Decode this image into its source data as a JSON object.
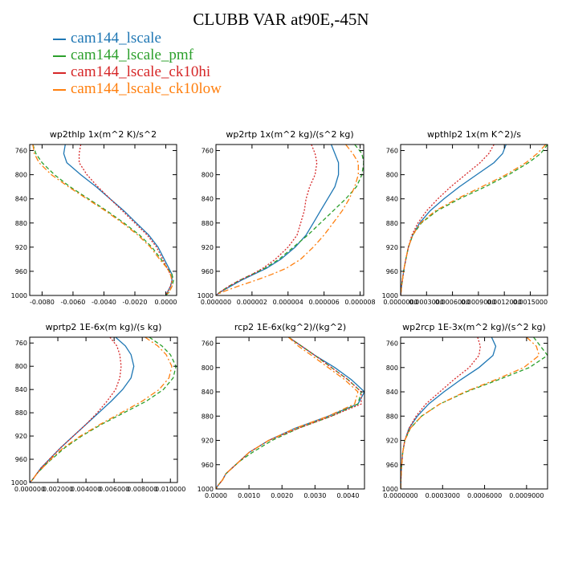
{
  "title": "CLUBB VAR at90E,-45N",
  "legend": [
    {
      "label": "cam144_lscale",
      "color": "#1f77b4"
    },
    {
      "label": "cam144_lscale_pmf",
      "color": "#2ca02c"
    },
    {
      "label": "cam144_lscale_ck10hi",
      "color": "#d62728"
    },
    {
      "label": "cam144_lscale_ck10low",
      "color": "#ff7f0e"
    }
  ],
  "chart_data": [
    {
      "type": "line",
      "title": "wp2thlp   1x(m^2 K)/s^2",
      "ylim": [
        1000,
        750
      ],
      "yticks": [
        760,
        800,
        840,
        880,
        920,
        960,
        1000
      ],
      "ytick_labels": [
        "760",
        "800",
        "840",
        "880",
        "920",
        "960",
        "1000"
      ],
      "xlim": [
        -0.0088,
        0.0007
      ],
      "xticks": [
        -0.008,
        -0.006,
        -0.004,
        -0.002,
        0.0
      ],
      "xtick_labels": [
        "-0.0080",
        "-0.0060",
        "-0.0040",
        "-0.0020",
        "0.0000"
      ],
      "y": [
        750,
        765,
        780,
        800,
        820,
        840,
        860,
        880,
        900,
        920,
        940,
        955,
        965,
        975,
        985,
        995,
        1000
      ],
      "series": [
        {
          "name": "cam144_lscale",
          "values": [
            -0.0065,
            -0.0066,
            -0.0064,
            -0.0055,
            -0.0045,
            -0.0036,
            -0.0027,
            -0.0019,
            -0.0011,
            -0.0005,
            -0.0001,
            0.0002,
            0.0004,
            0.0004,
            0.0003,
            0.0001,
            0.0
          ]
        },
        {
          "name": "cam144_lscale_pmf",
          "values": [
            -0.0086,
            -0.0084,
            -0.008,
            -0.0072,
            -0.0062,
            -0.005,
            -0.0038,
            -0.0027,
            -0.0017,
            -0.0009,
            -0.0003,
            0.0001,
            0.0004,
            0.0005,
            0.0004,
            0.0002,
            0.0
          ]
        },
        {
          "name": "cam144_lscale_ck10hi",
          "values": [
            -0.0055,
            -0.0056,
            -0.0056,
            -0.0051,
            -0.0044,
            -0.0036,
            -0.0028,
            -0.002,
            -0.0012,
            -0.0006,
            -0.0002,
            0.0001,
            0.0003,
            0.0004,
            0.0003,
            0.0001,
            0.0
          ]
        },
        {
          "name": "cam144_lscale_ck10low",
          "values": [
            -0.0086,
            -0.0085,
            -0.0082,
            -0.0074,
            -0.0063,
            -0.0051,
            -0.0039,
            -0.0028,
            -0.0018,
            -0.001,
            -0.0004,
            0.0001,
            0.0003,
            0.0004,
            0.0004,
            0.0002,
            0.0
          ]
        }
      ]
    },
    {
      "type": "line",
      "title": "wp2rtp   1x(m^2 kg)/(s^2 kg)",
      "ylim": [
        1000,
        750
      ],
      "yticks": [
        760,
        800,
        840,
        880,
        920,
        960,
        1000
      ],
      "ytick_labels": [
        "760",
        "800",
        "840",
        "880",
        "920",
        "960",
        "1000"
      ],
      "xlim": [
        0.0,
        8.2e-06
      ],
      "xticks": [
        0.0,
        2e-06,
        4e-06,
        6e-06,
        8e-06
      ],
      "xtick_labels": [
        "0.000000",
        "0.000002",
        "0.000004",
        "0.000006",
        "0.000008"
      ],
      "y": [
        750,
        765,
        780,
        800,
        820,
        840,
        860,
        880,
        900,
        920,
        940,
        955,
        965,
        975,
        985,
        995,
        1000
      ],
      "series": [
        {
          "name": "cam144_lscale",
          "values": [
            6.4e-06,
            6.6e-06,
            6.8e-06,
            6.8e-06,
            6.6e-06,
            6.2e-06,
            5.8e-06,
            5.4e-06,
            5e-06,
            4.4e-06,
            3.6e-06,
            2.8e-06,
            2.1e-06,
            1.4e-06,
            8e-07,
            2e-07,
            0.0
          ]
        },
        {
          "name": "cam144_lscale_pmf",
          "values": [
            7.7e-06,
            8.1e-06,
            8.2e-06,
            8.1e-06,
            7.8e-06,
            7.2e-06,
            6.5e-06,
            5.8e-06,
            5.1e-06,
            4.3e-06,
            3.5e-06,
            2.7e-06,
            2e-06,
            1.3e-06,
            7e-07,
            2e-07,
            0.0
          ]
        },
        {
          "name": "cam144_lscale_ck10hi",
          "values": [
            5.3e-06,
            5.5e-06,
            5.6e-06,
            5.5e-06,
            5.2e-06,
            5e-06,
            4.9e-06,
            4.7e-06,
            4.5e-06,
            4e-06,
            3.3e-06,
            2.6e-06,
            2e-06,
            1.3e-06,
            7e-07,
            2e-07,
            0.0
          ]
        },
        {
          "name": "cam144_lscale_ck10low",
          "values": [
            7.2e-06,
            7.6e-06,
            7.9e-06,
            7.9e-06,
            7.7e-06,
            7.4e-06,
            7e-06,
            6.5e-06,
            6e-06,
            5.4e-06,
            4.7e-06,
            3.9e-06,
            3.1e-06,
            2.2e-06,
            1.2e-06,
            3e-07,
            0.0
          ]
        }
      ]
    },
    {
      "type": "line",
      "title": "wpthlp2   1x(m K^2)/s",
      "ylim": [
        1000,
        750
      ],
      "yticks": [
        760,
        800,
        840,
        880,
        920,
        960,
        1000
      ],
      "ytick_labels": [
        "760",
        "800",
        "840",
        "880",
        "920",
        "960",
        "1000"
      ],
      "xlim": [
        0.0,
        0.0017
      ],
      "xticks": [
        0.0,
        0.0003,
        0.0006,
        0.0009,
        0.0012,
        0.0015
      ],
      "xtick_labels": [
        "0.0000000",
        "0.0003000",
        "0.0006000",
        "0.0009000",
        "0.0012000",
        "0.0015000"
      ],
      "y": [
        750,
        765,
        780,
        800,
        820,
        840,
        860,
        880,
        900,
        920,
        940,
        955,
        965,
        975,
        985,
        995,
        1000
      ],
      "series": [
        {
          "name": "cam144_lscale",
          "values": [
            0.00122,
            0.00118,
            0.00108,
            0.00088,
            0.00068,
            0.0005,
            0.00034,
            0.00022,
            0.00014,
            9e-05,
            6e-05,
            4e-05,
            3e-05,
            2e-05,
            1e-05,
            5e-06,
            0.0
          ]
        },
        {
          "name": "cam144_lscale_pmf",
          "values": [
            0.0017,
            0.00162,
            0.00148,
            0.00125,
            0.00098,
            0.00068,
            0.00042,
            0.00024,
            0.00014,
            9e-05,
            6e-05,
            4e-05,
            3e-05,
            2e-05,
            1e-05,
            5e-06,
            0.0
          ]
        },
        {
          "name": "cam144_lscale_ck10hi",
          "values": [
            0.00108,
            0.00102,
            0.00092,
            0.00075,
            0.00058,
            0.00043,
            0.0003,
            0.0002,
            0.00013,
            9e-05,
            6e-05,
            4e-05,
            3e-05,
            2e-05,
            1e-05,
            5e-06,
            0.0
          ]
        },
        {
          "name": "cam144_lscale_ck10low",
          "values": [
            0.00168,
            0.00158,
            0.00145,
            0.00122,
            0.00094,
            0.00065,
            0.0004,
            0.00023,
            0.00014,
            9e-05,
            6e-05,
            4e-05,
            3e-05,
            2e-05,
            1e-05,
            5e-06,
            0.0
          ]
        }
      ]
    },
    {
      "type": "line",
      "title": "wprtp2   1E-6x(m kg)/(s kg)",
      "ylim": [
        1000,
        750
      ],
      "yticks": [
        760,
        800,
        840,
        880,
        920,
        960,
        1000
      ],
      "ytick_labels": [
        "760",
        "800",
        "840",
        "880",
        "920",
        "960",
        "1000"
      ],
      "xlim": [
        0.0,
        0.0105
      ],
      "xticks": [
        0.0,
        0.002,
        0.004,
        0.006,
        0.008,
        0.01
      ],
      "xtick_labels": [
        "0.000000",
        "0.002000",
        "0.004000",
        "0.006000",
        "0.008000",
        "0.010000"
      ],
      "y": [
        750,
        765,
        780,
        800,
        820,
        840,
        860,
        880,
        900,
        920,
        940,
        955,
        965,
        975,
        985,
        995,
        1000
      ],
      "series": [
        {
          "name": "cam144_lscale",
          "values": [
            0.0061,
            0.0068,
            0.0072,
            0.0074,
            0.0072,
            0.0066,
            0.0058,
            0.0049,
            0.004,
            0.0031,
            0.0022,
            0.0016,
            0.0012,
            0.0008,
            0.0005,
            0.0002,
            0.0
          ]
        },
        {
          "name": "cam144_lscale_pmf",
          "values": [
            0.0085,
            0.0094,
            0.01,
            0.0104,
            0.0102,
            0.0095,
            0.0083,
            0.0067,
            0.0051,
            0.0037,
            0.0025,
            0.0018,
            0.0013,
            0.0009,
            0.0005,
            0.0002,
            0.0
          ]
        },
        {
          "name": "cam144_lscale_ck10hi",
          "values": [
            0.0057,
            0.0062,
            0.0064,
            0.0065,
            0.0064,
            0.0061,
            0.0055,
            0.0048,
            0.004,
            0.0031,
            0.0022,
            0.0016,
            0.0012,
            0.0008,
            0.0005,
            0.0002,
            0.0
          ]
        },
        {
          "name": "cam144_lscale_ck10low",
          "values": [
            0.0082,
            0.0091,
            0.0097,
            0.0101,
            0.0099,
            0.0092,
            0.008,
            0.0065,
            0.005,
            0.0036,
            0.0024,
            0.0017,
            0.0013,
            0.0009,
            0.0005,
            0.0002,
            0.0
          ]
        }
      ]
    },
    {
      "type": "line",
      "title": "rcp2   1E-6x(kg^2)/(kg^2)",
      "ylim": [
        1000,
        750
      ],
      "yticks": [
        760,
        800,
        840,
        880,
        920,
        960,
        1000
      ],
      "ytick_labels": [
        "760",
        "800",
        "840",
        "880",
        "920",
        "960",
        "1000"
      ],
      "xlim": [
        0.0,
        0.0045
      ],
      "xticks": [
        0.0,
        0.001,
        0.002,
        0.003,
        0.004
      ],
      "xtick_labels": [
        "0.0000",
        "0.0010",
        "0.0020",
        "0.0030",
        "0.0040"
      ],
      "y": [
        750,
        765,
        780,
        800,
        820,
        840,
        860,
        880,
        900,
        920,
        940,
        955,
        965,
        975,
        985,
        995,
        1000
      ],
      "series": [
        {
          "name": "cam144_lscale",
          "values": [
            0.0022,
            0.0026,
            0.003,
            0.0036,
            0.0041,
            0.0045,
            0.0043,
            0.0034,
            0.0024,
            0.0016,
            0.001,
            0.0007,
            0.0005,
            0.0003,
            0.0002,
            5e-05,
            0.0
          ]
        },
        {
          "name": "cam144_lscale_pmf",
          "values": [
            0.0022,
            0.0026,
            0.003,
            0.0035,
            0.004,
            0.0044,
            0.0043,
            0.0035,
            0.0025,
            0.0017,
            0.0011,
            0.0007,
            0.0005,
            0.0003,
            0.0002,
            5e-05,
            0.0
          ]
        },
        {
          "name": "cam144_lscale_ck10hi",
          "values": [
            0.0022,
            0.0026,
            0.003,
            0.0035,
            0.004,
            0.0044,
            0.0044,
            0.0035,
            0.0025,
            0.0016,
            0.001,
            0.0007,
            0.0005,
            0.0003,
            0.0002,
            5e-05,
            0.0
          ]
        },
        {
          "name": "cam144_lscale_ck10low",
          "values": [
            0.0022,
            0.0025,
            0.0029,
            0.0034,
            0.0039,
            0.0043,
            0.0042,
            0.0034,
            0.0024,
            0.0016,
            0.001,
            0.0007,
            0.0005,
            0.0003,
            0.0002,
            5e-05,
            0.0
          ]
        }
      ]
    },
    {
      "type": "line",
      "title": "wp2rcp   1E-3x(m^2 kg)/(s^2 kg)",
      "ylim": [
        1000,
        750
      ],
      "yticks": [
        760,
        800,
        840,
        880,
        920,
        960,
        1000
      ],
      "ytick_labels": [
        "760",
        "800",
        "840",
        "880",
        "920",
        "960",
        "1000"
      ],
      "xlim": [
        0.0,
        0.00105
      ],
      "xticks": [
        0.0,
        0.0003,
        0.0006,
        0.0009
      ],
      "xtick_labels": [
        "0.0000000",
        "0.0003000",
        "0.0006000",
        "0.0009000"
      ],
      "y": [
        750,
        765,
        780,
        800,
        820,
        840,
        860,
        880,
        900,
        920,
        940,
        955,
        965,
        975,
        985,
        995,
        1000
      ],
      "series": [
        {
          "name": "cam144_lscale",
          "values": [
            0.00065,
            0.00068,
            0.00066,
            0.00056,
            0.00043,
            0.00031,
            0.0002,
            0.00012,
            6e-05,
            3e-05,
            1.5e-05,
            1e-05,
            6e-06,
            4e-06,
            2e-06,
            1e-06,
            0.0
          ]
        },
        {
          "name": "cam144_lscale_pmf",
          "values": [
            0.00095,
            0.001,
            0.00105,
            0.00092,
            0.0007,
            0.00047,
            0.00028,
            0.00015,
            7e-05,
            3e-05,
            1.5e-05,
            1e-05,
            6e-06,
            4e-06,
            2e-06,
            1e-06,
            0.0
          ]
        },
        {
          "name": "cam144_lscale_ck10hi",
          "values": [
            0.00055,
            0.00057,
            0.00056,
            0.00049,
            0.00038,
            0.00028,
            0.00018,
            0.00011,
            6e-05,
            3e-05,
            1.5e-05,
            1e-05,
            6e-06,
            4e-06,
            2e-06,
            1e-06,
            0.0
          ]
        },
        {
          "name": "cam144_lscale_ck10low",
          "values": [
            0.0009,
            0.00097,
            0.00099,
            0.00088,
            0.00068,
            0.00046,
            0.00028,
            0.00015,
            7e-05,
            3e-05,
            1.5e-05,
            1e-05,
            6e-06,
            4e-06,
            2e-06,
            1e-06,
            0.0
          ]
        }
      ]
    }
  ]
}
